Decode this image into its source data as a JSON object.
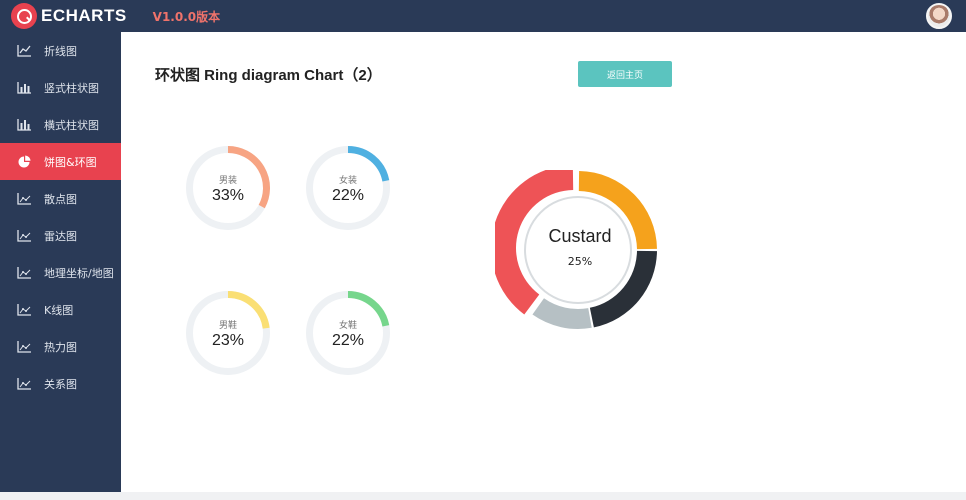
{
  "header": {
    "logo_text": "ECHARTS",
    "version": "V1.0.0版本"
  },
  "sidebar": {
    "items": [
      {
        "label": "折线图",
        "icon": "line-chart-icon",
        "active": false
      },
      {
        "label": "竖式柱状图",
        "icon": "bar-chart-icon",
        "active": false
      },
      {
        "label": "横式柱状图",
        "icon": "bar-chart-icon",
        "active": false
      },
      {
        "label": "饼图&环图",
        "icon": "pie-chart-icon",
        "active": true
      },
      {
        "label": "散点图",
        "icon": "area-chart-icon",
        "active": false
      },
      {
        "label": "雷达图",
        "icon": "area-chart-icon",
        "active": false
      },
      {
        "label": "地理坐标/地图",
        "icon": "area-chart-icon",
        "active": false
      },
      {
        "label": "K线图",
        "icon": "area-chart-icon",
        "active": false
      },
      {
        "label": "热力图",
        "icon": "area-chart-icon",
        "active": false
      },
      {
        "label": "关系图",
        "icon": "area-chart-icon",
        "active": false
      }
    ]
  },
  "main": {
    "title": "环状图 Ring diagram Chart（2）",
    "back_button": "返回主页"
  },
  "colors": {
    "sidebar_bg": "#2a3a57",
    "active": "#e8424f",
    "button": "#5bc4bf",
    "track": "#eef1f4"
  },
  "chart_data": [
    {
      "type": "pie",
      "variant": "ring-progress",
      "items": [
        {
          "name": "男装",
          "value": 33,
          "display": "33%",
          "color": "#f7a483"
        },
        {
          "name": "女装",
          "value": 22,
          "display": "22%",
          "color": "#4fb0e1"
        },
        {
          "name": "男鞋",
          "value": 23,
          "display": "23%",
          "color": "#fadf74"
        },
        {
          "name": "女鞋",
          "value": 22,
          "display": "22%",
          "color": "#76d68c"
        }
      ]
    },
    {
      "type": "pie",
      "variant": "donut",
      "highlighted": {
        "name": "Custard",
        "display": "25%"
      },
      "slices": [
        {
          "value": 25,
          "color": "#f5a21c"
        },
        {
          "value": 22,
          "color": "#2a3038"
        },
        {
          "value": 13,
          "color": "#b6c0c4"
        },
        {
          "value": 40,
          "color": "#ee5356"
        }
      ]
    }
  ]
}
